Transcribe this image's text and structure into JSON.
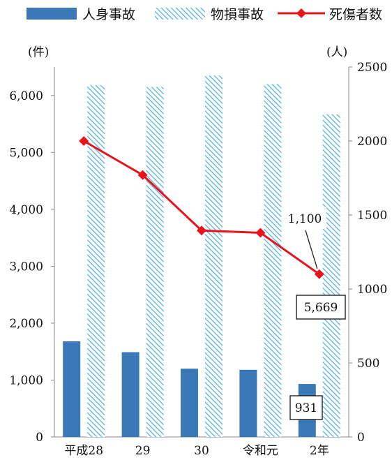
{
  "chart_data": {
    "type": "bar",
    "categories": [
      "平成28",
      "29",
      "30",
      "令和元",
      "2年"
    ],
    "left_axis": {
      "unit": "(件)",
      "ticks": [
        "0",
        "1,000",
        "2,000",
        "3,000",
        "4,000",
        "5,000",
        "6,000"
      ],
      "ylim": [
        0,
        6500
      ]
    },
    "right_axis": {
      "unit": "(人)",
      "ticks": [
        "0",
        "500",
        "1000",
        "1500",
        "2000",
        "2500"
      ],
      "ylim": [
        0,
        2500
      ]
    },
    "series": [
      {
        "name": "人身事故",
        "kind": "bar",
        "style": "solid",
        "color": "#3a78b8",
        "axis": "left",
        "values": [
          1680,
          1490,
          1200,
          1180,
          931
        ]
      },
      {
        "name": "物損事故",
        "kind": "bar",
        "style": "hatched",
        "color": "#5bb4e0",
        "axis": "left",
        "values": [
          6180,
          6150,
          6350,
          6200,
          5669
        ]
      },
      {
        "name": "死傷者数",
        "kind": "line",
        "marker": "diamond",
        "color": "#e8141b",
        "axis": "right",
        "values": [
          2000,
          1770,
          1395,
          1380,
          1100
        ]
      }
    ],
    "annotations": [
      {
        "text": "1,100",
        "series": "死傷者数",
        "index": 4
      },
      {
        "text": "5,669",
        "series": "物損事故",
        "index": 4
      },
      {
        "text": "931",
        "series": "人身事故",
        "index": 4
      }
    ],
    "grid": false,
    "legend": "top"
  }
}
